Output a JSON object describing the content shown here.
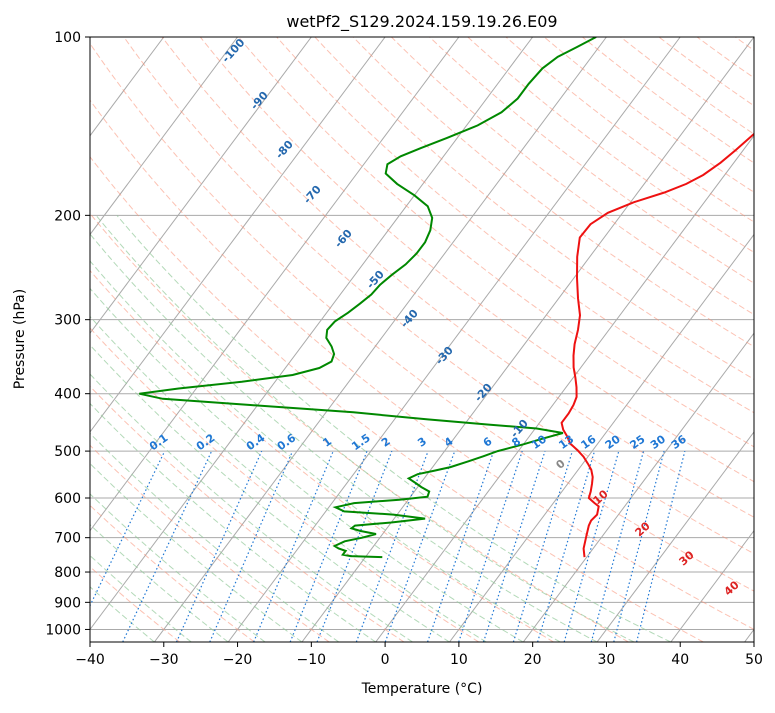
{
  "chart_data": {
    "type": "line",
    "title": "wetPf2_S129.2024.159.19.26.E09",
    "xlabel": "Temperature (°C)",
    "ylabel": "Pressure (hPa)",
    "xlim": [
      -40,
      50
    ],
    "ylim": [
      1050,
      100
    ],
    "y_scale": "log",
    "x_ticks": [
      -40,
      -30,
      -20,
      -10,
      0,
      10,
      20,
      30,
      40,
      50
    ],
    "y_ticks": [
      100,
      200,
      300,
      400,
      500,
      600,
      700,
      800,
      900,
      1000
    ],
    "skew_deg_per_log_decade": 60,
    "grid": true,
    "colors": {
      "temperature": "#ee1111",
      "dewpoint": "#008800",
      "isotherm": "#aaaaaa",
      "dry_adiabat": "#fa8f74",
      "moist_adiabat": "#93c99a",
      "mixing_ratio": "#1f77d4",
      "theta_label": "#2468ae",
      "isotherm_label": "#dd2222"
    },
    "series": [
      {
        "key": "temperature",
        "points": [
          [
            19.7,
            755
          ],
          [
            18.7,
            730
          ],
          [
            17.8,
            695
          ],
          [
            17.1,
            668
          ],
          [
            16.9,
            655
          ],
          [
            17.1,
            640
          ],
          [
            16.5,
            620
          ],
          [
            15.6,
            612
          ],
          [
            14.3,
            600
          ],
          [
            13.9,
            585
          ],
          [
            13.3,
            568
          ],
          [
            12.7,
            553
          ],
          [
            11.8,
            538
          ],
          [
            10.7,
            525
          ],
          [
            9.4,
            511
          ],
          [
            7.9,
            498
          ],
          [
            6.2,
            485
          ],
          [
            5.2,
            473
          ],
          [
            3.9,
            460
          ],
          [
            3.0,
            448
          ],
          [
            3.0,
            432
          ],
          [
            2.8,
            418
          ],
          [
            2.4,
            405
          ],
          [
            1.4,
            390
          ],
          [
            0.3,
            376
          ],
          [
            -1.0,
            361
          ],
          [
            -2.2,
            345
          ],
          [
            -3.2,
            330
          ],
          [
            -4.2,
            312
          ],
          [
            -5.4,
            295
          ],
          [
            -7.4,
            276
          ],
          [
            -9.6,
            255
          ],
          [
            -11.7,
            235
          ],
          [
            -13.3,
            218
          ],
          [
            -13.2,
            207
          ],
          [
            -12.0,
            198
          ],
          [
            -9.5,
            190
          ],
          [
            -6.4,
            183
          ],
          [
            -4.3,
            177
          ],
          [
            -2.9,
            171
          ],
          [
            -1.8,
            163
          ],
          [
            -1.0,
            155
          ],
          [
            -0.2,
            146
          ],
          [
            0.3,
            138
          ],
          [
            0.6,
            130
          ],
          [
            0.9,
            122
          ],
          [
            1.4,
            115
          ],
          [
            2.0,
            108
          ],
          [
            2.6,
            100
          ]
        ]
      },
      {
        "key": "dewpoint",
        "points": [
          [
            -7.7,
            755
          ],
          [
            -12.1,
            752
          ],
          [
            -13.3,
            748
          ],
          [
            -13.3,
            737
          ],
          [
            -14.5,
            730
          ],
          [
            -15.3,
            723
          ],
          [
            -14.4,
            710
          ],
          [
            -12.4,
            700
          ],
          [
            -10.9,
            690
          ],
          [
            -13.3,
            682
          ],
          [
            -14.8,
            675
          ],
          [
            -14.6,
            668
          ],
          [
            -10.0,
            660
          ],
          [
            -5.8,
            650
          ],
          [
            -10.5,
            640
          ],
          [
            -17.5,
            632
          ],
          [
            -19.1,
            622
          ],
          [
            -17.0,
            612
          ],
          [
            -11.2,
            604
          ],
          [
            -7.7,
            597
          ],
          [
            -8.0,
            585
          ],
          [
            -9.5,
            575
          ],
          [
            -10.7,
            566
          ],
          [
            -12.1,
            556
          ],
          [
            -11.3,
            547
          ],
          [
            -9.5,
            540
          ],
          [
            -7.6,
            532
          ],
          [
            -5.7,
            520
          ],
          [
            -4.2,
            510
          ],
          [
            -2.8,
            500
          ],
          [
            0.0,
            487
          ],
          [
            2.1,
            476
          ],
          [
            4.2,
            466
          ],
          [
            0.2,
            458
          ],
          [
            -6.7,
            451
          ],
          [
            -15.5,
            442
          ],
          [
            -26.3,
            430
          ],
          [
            -41.0,
            418
          ],
          [
            -53.5,
            408
          ],
          [
            -57.2,
            400
          ],
          [
            -52.4,
            392
          ],
          [
            -44.5,
            382
          ],
          [
            -38.3,
            372
          ],
          [
            -35.4,
            362
          ],
          [
            -34.4,
            353
          ],
          [
            -34.8,
            343
          ],
          [
            -35.9,
            333
          ],
          [
            -37.5,
            322
          ],
          [
            -38.2,
            312
          ],
          [
            -38.0,
            302
          ],
          [
            -37.1,
            292
          ],
          [
            -36.4,
            282
          ],
          [
            -35.8,
            272
          ],
          [
            -35.6,
            262
          ],
          [
            -35.0,
            252
          ],
          [
            -34.2,
            242
          ],
          [
            -33.8,
            232
          ],
          [
            -33.8,
            222
          ],
          [
            -34.3,
            212
          ],
          [
            -35.3,
            202
          ],
          [
            -37.1,
            193
          ],
          [
            -40.0,
            185
          ],
          [
            -43.5,
            177
          ],
          [
            -46.1,
            170
          ],
          [
            -46.8,
            164
          ],
          [
            -45.8,
            159
          ],
          [
            -43.9,
            154
          ],
          [
            -41.4,
            148
          ],
          [
            -38.5,
            141
          ],
          [
            -36.6,
            134
          ],
          [
            -35.8,
            127
          ],
          [
            -35.8,
            120
          ],
          [
            -35.5,
            113
          ],
          [
            -34.6,
            108
          ],
          [
            -33.0,
            104
          ],
          [
            -31.4,
            100
          ]
        ]
      }
    ],
    "mixing_ratio_labels": [
      "0.1",
      "0.2",
      "0.4",
      "0.6",
      "1",
      "1.5",
      "2",
      "3",
      "4",
      "6",
      "8",
      "10",
      "13",
      "16",
      "20",
      "25",
      "30",
      "36"
    ],
    "mixing_ratio_values": [
      0.1,
      0.2,
      0.4,
      0.6,
      1,
      1.5,
      2,
      3,
      4,
      6,
      8,
      10,
      13,
      16,
      20,
      25,
      30,
      36
    ],
    "theta_labels": [
      "-100",
      "-90",
      "-80",
      "-70",
      "-60",
      "-50",
      "-40",
      "-30",
      "-20",
      "-10"
    ],
    "isotherm_labels": [
      "0",
      "10",
      "20",
      "30",
      "40"
    ]
  }
}
